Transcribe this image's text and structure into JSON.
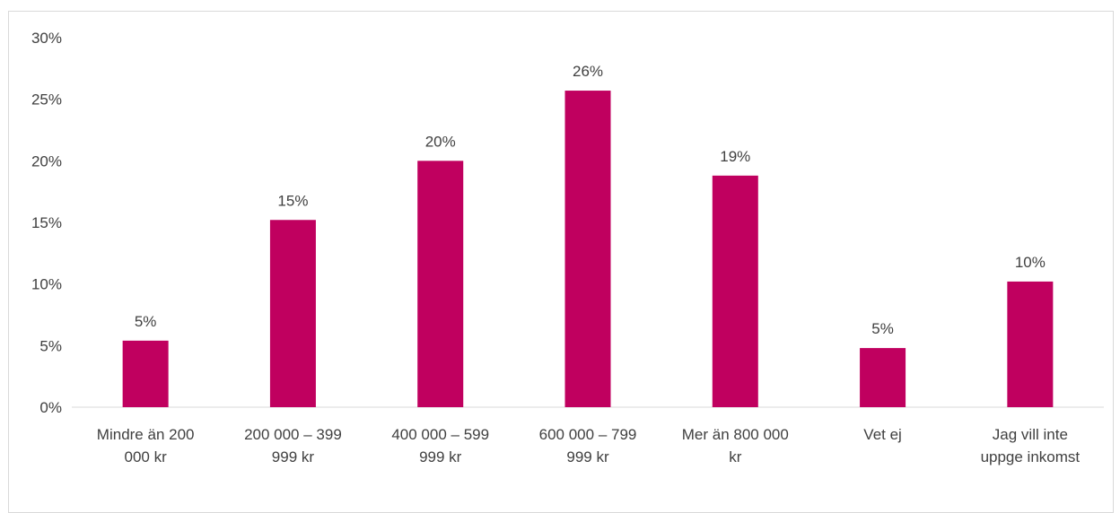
{
  "chart_data": {
    "type": "bar",
    "categories": [
      [
        "Mindre än 200",
        "000 kr"
      ],
      [
        "200 000 – 399",
        "999 kr"
      ],
      [
        "400 000 – 599",
        "999 kr"
      ],
      [
        "600 000 – 799",
        "999 kr"
      ],
      [
        "Mer än 800 000",
        "kr"
      ],
      [
        "Vet ej"
      ],
      [
        "Jag vill inte",
        "uppge inkomst"
      ]
    ],
    "values": [
      5.4,
      15.2,
      20.0,
      25.7,
      18.8,
      4.8,
      10.2
    ],
    "data_labels": [
      "5%",
      "15%",
      "20%",
      "26%",
      "19%",
      "5%",
      "10%"
    ],
    "y_ticks": [
      "0%",
      "5%",
      "10%",
      "15%",
      "20%",
      "25%",
      "30%"
    ],
    "ylim": [
      0,
      30
    ],
    "grid": false,
    "title": "",
    "xlabel": "",
    "ylabel": "",
    "bar_color": "#c0005f"
  }
}
